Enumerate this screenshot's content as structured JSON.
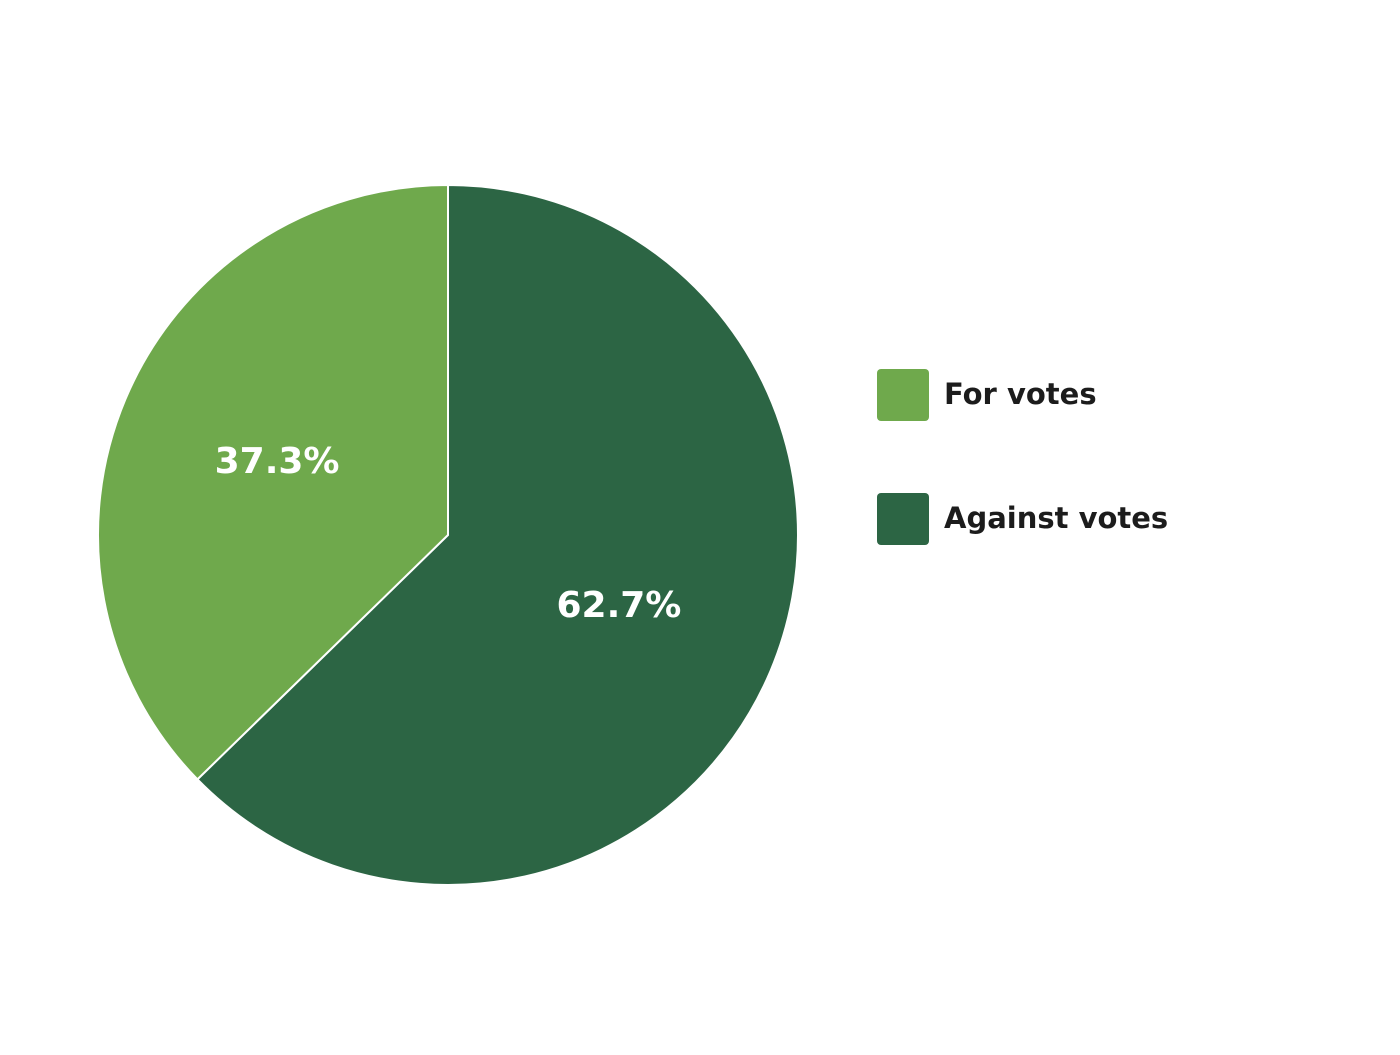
{
  "chart_data": {
    "type": "pie",
    "categories": [
      "For votes",
      "Against votes"
    ],
    "values": [
      37.3,
      62.7
    ],
    "value_labels": [
      "37.3%",
      "62.7%"
    ],
    "colors": [
      "#6fa94c",
      "#2c6544"
    ]
  }
}
